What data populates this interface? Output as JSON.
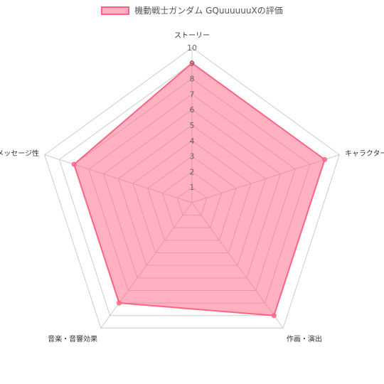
{
  "chart_data": {
    "type": "radar",
    "title": "",
    "labels": [
      "ストーリー",
      "キャラクター",
      "作画・演出",
      "音楽・音響効果",
      "メッセージ性"
    ],
    "series": [
      {
        "name": "機動戦士ガンダム GQuuuuuuXの評価",
        "values": [
          9,
          9,
          9,
          8,
          8
        ]
      }
    ],
    "scale": {
      "min": 0,
      "max": 10,
      "step": 1,
      "ticks": [
        "1",
        "2",
        "3",
        "4",
        "5",
        "6",
        "7",
        "8",
        "9",
        "10"
      ]
    },
    "grid": true,
    "legend": "top-center",
    "colors": {
      "fill": "#ff6384",
      "stroke": "#ff6384",
      "grid": "#cccccc",
      "tick": "#666666",
      "label": "#333333"
    }
  }
}
